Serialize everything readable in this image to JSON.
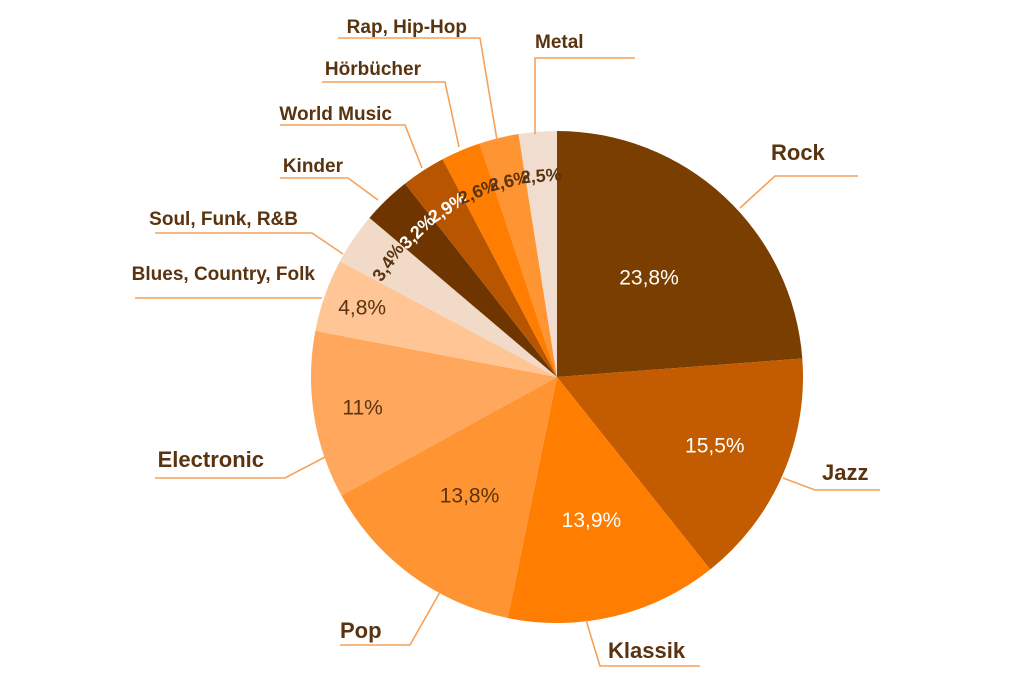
{
  "chart_data": {
    "type": "pie",
    "start": "12 o'clock",
    "direction": "clockwise",
    "legend": "none",
    "categories": [
      "Rock",
      "Jazz",
      "Klassik",
      "Pop",
      "Electronic",
      "Blues, Country, Folk",
      "Soul, Funk, R&B",
      "Kinder",
      "World Music",
      "Hörbücher",
      "Rap, Hip-Hop",
      "Metal"
    ],
    "values": [
      23.8,
      15.5,
      13.9,
      13.8,
      11,
      4.8,
      3.4,
      3.2,
      2.9,
      2.6,
      2.6,
      2.5
    ],
    "value_labels": [
      "23,8%",
      "15,5%",
      "13,9%",
      "13,8%",
      "11%",
      "4,8%",
      "3,4%",
      "3,2%",
      "2,9%",
      "2,6%",
      "2,6%",
      "2,5%"
    ],
    "colors": [
      "#7a3e00",
      "#c35c00",
      "#ff7d00",
      "#ff9433",
      "#ffa75c",
      "#ffc594",
      "#f2dac9",
      "#6e3500",
      "#b85500",
      "#ff7d00",
      "#ff9433",
      "#f1ddcf"
    ],
    "label_colors": [
      "#ffffff",
      "#ffffff",
      "#ffffff",
      "#5a3410",
      "#5a3410",
      "#5a3410",
      "#5a3410",
      "#ffffff",
      "#ffffff",
      "#5a3410",
      "#5a3410",
      "#5a3410"
    ],
    "leader_color": "#f5a15a"
  }
}
